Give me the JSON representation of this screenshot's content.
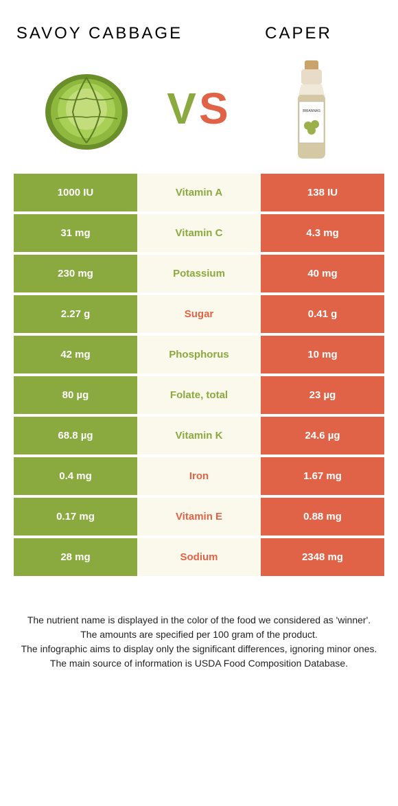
{
  "colors": {
    "left": "#8aa93e",
    "right": "#e06347",
    "mid_bg": "#fbf8ec",
    "page_bg": "#ffffff",
    "text": "#222222"
  },
  "header": {
    "left_title": "Savoy Cabbage",
    "right_title": "Caper",
    "vs_v": "V",
    "vs_s": "S"
  },
  "table": {
    "columns": [
      "left_value",
      "nutrient",
      "right_value"
    ],
    "rows": [
      {
        "left": "1000 IU",
        "label": "Vitamin A",
        "right": "138 IU",
        "winner": "left"
      },
      {
        "left": "31 mg",
        "label": "Vitamin C",
        "right": "4.3 mg",
        "winner": "left"
      },
      {
        "left": "230 mg",
        "label": "Potassium",
        "right": "40 mg",
        "winner": "left"
      },
      {
        "left": "2.27 g",
        "label": "Sugar",
        "right": "0.41 g",
        "winner": "right"
      },
      {
        "left": "42 mg",
        "label": "Phosphorus",
        "right": "10 mg",
        "winner": "left"
      },
      {
        "left": "80 µg",
        "label": "Folate, total",
        "right": "23 µg",
        "winner": "left"
      },
      {
        "left": "68.8 µg",
        "label": "Vitamin K",
        "right": "24.6 µg",
        "winner": "left"
      },
      {
        "left": "0.4 mg",
        "label": "Iron",
        "right": "1.67 mg",
        "winner": "right"
      },
      {
        "left": "0.17 mg",
        "label": "Vitamin E",
        "right": "0.88 mg",
        "winner": "right"
      },
      {
        "left": "28 mg",
        "label": "Sodium",
        "right": "2348 mg",
        "winner": "right"
      }
    ]
  },
  "footer": {
    "line1": "The nutrient name is displayed in the color of the food we considered as 'winner'.",
    "line2": "The amounts are specified per 100 gram of the product.",
    "line3": "The infographic aims to display only the significant differences, ignoring minor ones.",
    "line4": "The main source of information is USDA Food Composition Database."
  }
}
